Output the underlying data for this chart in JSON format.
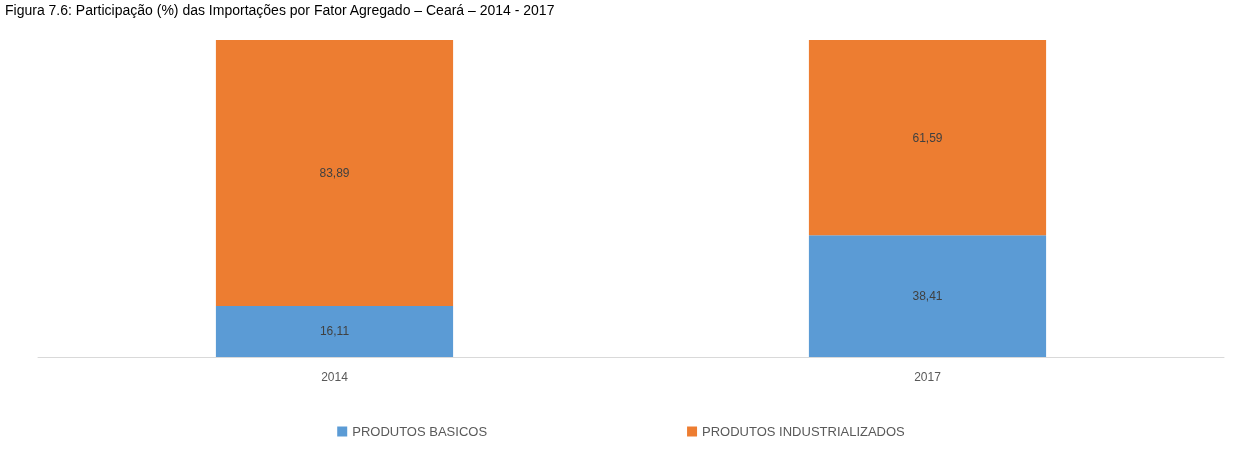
{
  "chart_data": {
    "type": "bar",
    "title": "Figura 7.6: Participação (%) das Importações por Fator Agregado – Ceará – 2014 - 2017",
    "categories": [
      "2014",
      "2017"
    ],
    "stacked": true,
    "legend": "bottom",
    "series": [
      {
        "name": "PRODUTOS BASICOS",
        "color": "#5b9bd5",
        "values": [
          16.11,
          38.41
        ],
        "value_labels": [
          "16,11",
          "38,41"
        ]
      },
      {
        "name": "PRODUTOS INDUSTRIALIZADOS",
        "color": "#ed7d31",
        "values": [
          83.89,
          61.59
        ],
        "value_labels": [
          "83,89",
          "61,59"
        ]
      }
    ]
  }
}
